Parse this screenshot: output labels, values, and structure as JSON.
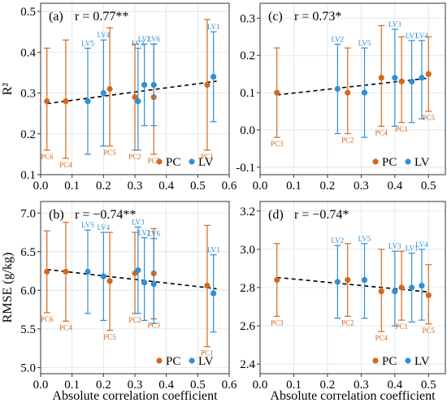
{
  "figure": {
    "x_axis_label": "Absolute correlation coefficient",
    "colors": {
      "PC": "#d2691e",
      "LV": "#2e8fd6",
      "trend": "#000000",
      "grid": "#e0e0e0",
      "frame": "#333333"
    },
    "legend_labels": [
      "PC",
      "LV"
    ]
  },
  "chart_data": [
    {
      "type": "scatter",
      "panel": "(a)",
      "annotation": "r = 0.77**",
      "ylabel": "R²",
      "xlim": [
        0.0,
        0.6
      ],
      "ylim": [
        0.1,
        0.52
      ],
      "xticks": [
        0.0,
        0.1,
        0.2,
        0.3,
        0.4,
        0.5,
        0.6
      ],
      "yticks": [
        0.1,
        0.2,
        0.3,
        0.4,
        0.5
      ],
      "ytick_labels": [
        "0.1",
        "0.2",
        "0.3",
        "0.4",
        "0.5"
      ],
      "xtick_labels": [
        "0.0",
        "0.1",
        "0.2",
        "0.3",
        "0.4",
        "0.5",
        "0.6"
      ],
      "legend": "bottom-right",
      "trend_line": {
        "x": [
          0.02,
          0.56
        ],
        "y": [
          0.274,
          0.329
        ]
      },
      "series": [
        {
          "name": "PC",
          "points": [
            {
              "label": "PC6",
              "x": 0.02,
              "y": 0.28,
              "lo": 0.16,
              "hi": 0.41
            },
            {
              "label": "PC4",
              "x": 0.08,
              "y": 0.28,
              "lo": 0.14,
              "hi": 0.43
            },
            {
              "label": "PC5",
              "x": 0.22,
              "y": 0.31,
              "lo": 0.17,
              "hi": 0.46
            },
            {
              "label": "PC2",
              "x": 0.3,
              "y": 0.29,
              "lo": 0.16,
              "hi": 0.42
            },
            {
              "label": "PC3",
              "x": 0.36,
              "y": 0.29,
              "lo": 0.15,
              "hi": 0.42
            },
            {
              "label": "PC1",
              "x": 0.53,
              "y": 0.32,
              "lo": 0.16,
              "hi": 0.48
            }
          ]
        },
        {
          "name": "LV",
          "points": [
            {
              "label": "LV5",
              "x": 0.15,
              "y": 0.28,
              "lo": 0.15,
              "hi": 0.41
            },
            {
              "label": "LV4",
              "x": 0.2,
              "y": 0.3,
              "lo": 0.17,
              "hi": 0.43
            },
            {
              "label": "LV3",
              "x": 0.31,
              "y": 0.28,
              "lo": 0.16,
              "hi": 0.41
            },
            {
              "label": "LV2",
              "x": 0.33,
              "y": 0.32,
              "lo": 0.22,
              "hi": 0.42
            },
            {
              "label": "LV6",
              "x": 0.36,
              "y": 0.32,
              "lo": 0.22,
              "hi": 0.42
            },
            {
              "label": "LV1",
              "x": 0.55,
              "y": 0.34,
              "lo": 0.23,
              "hi": 0.45
            }
          ]
        }
      ]
    },
    {
      "type": "scatter",
      "panel": "(c)",
      "annotation": "r = 0.73*",
      "ylabel": "",
      "xlim": [
        0.0,
        0.55
      ],
      "ylim": [
        -0.12,
        0.34
      ],
      "xticks": [
        0.0,
        0.1,
        0.2,
        0.3,
        0.4,
        0.5
      ],
      "yticks": [
        -0.1,
        0.0,
        0.1,
        0.2,
        0.3
      ],
      "ytick_labels": [
        "-0.1",
        "0.0",
        "0.1",
        "0.2",
        "0.3"
      ],
      "xtick_labels": [
        "0.0",
        "0.1",
        "0.2",
        "0.3",
        "0.4",
        "0.5"
      ],
      "legend": "bottom-right",
      "trend_line": {
        "x": [
          0.05,
          0.5
        ],
        "y": [
          0.094,
          0.139
        ]
      },
      "series": [
        {
          "name": "PC",
          "points": [
            {
              "label": "PC3",
              "x": 0.05,
              "y": 0.1,
              "lo": -0.02,
              "hi": 0.22
            },
            {
              "label": "PC2",
              "x": 0.26,
              "y": 0.1,
              "lo": -0.01,
              "hi": 0.22
            },
            {
              "label": "PC4",
              "x": 0.36,
              "y": 0.14,
              "lo": 0.01,
              "hi": 0.28
            },
            {
              "label": "PC1",
              "x": 0.42,
              "y": 0.13,
              "lo": 0.02,
              "hi": 0.25
            },
            {
              "label": "PC5",
              "x": 0.5,
              "y": 0.15,
              "lo": 0.05,
              "hi": 0.25
            }
          ]
        },
        {
          "name": "LV",
          "points": [
            {
              "label": "LV2",
              "x": 0.23,
              "y": 0.11,
              "lo": -0.01,
              "hi": 0.23
            },
            {
              "label": "LV5",
              "x": 0.31,
              "y": 0.1,
              "lo": -0.02,
              "hi": 0.22
            },
            {
              "label": "LV3",
              "x": 0.4,
              "y": 0.14,
              "lo": 0.01,
              "hi": 0.27
            },
            {
              "label": "LV1",
              "x": 0.45,
              "y": 0.13,
              "lo": 0.02,
              "hi": 0.24
            },
            {
              "label": "LV4",
              "x": 0.48,
              "y": 0.14,
              "lo": 0.03,
              "hi": 0.24
            }
          ]
        }
      ]
    },
    {
      "type": "scatter",
      "panel": "(b)",
      "annotation": "r = −0.74**",
      "ylabel": "RMSE (g/kg)",
      "xlim": [
        0.0,
        0.6
      ],
      "ylim": [
        4.92,
        7.15
      ],
      "xticks": [
        0.0,
        0.1,
        0.2,
        0.3,
        0.4,
        0.5,
        0.6
      ],
      "yticks": [
        5.0,
        5.5,
        6.0,
        6.5,
        7.0
      ],
      "ytick_labels": [
        "5.0",
        "5.5",
        "6.0",
        "6.5",
        "7.0"
      ],
      "xtick_labels": [
        "0.0",
        "0.1",
        "0.2",
        "0.3",
        "0.4",
        "0.5",
        "0.6"
      ],
      "legend": "bottom-right",
      "trend_line": {
        "x": [
          0.02,
          0.56
        ],
        "y": [
          6.27,
          6.02
        ]
      },
      "series": [
        {
          "name": "PC",
          "points": [
            {
              "label": "PC6",
              "x": 0.02,
              "y": 6.24,
              "lo": 5.71,
              "hi": 6.77
            },
            {
              "label": "PC4",
              "x": 0.08,
              "y": 6.24,
              "lo": 5.6,
              "hi": 6.88
            },
            {
              "label": "PC5",
              "x": 0.22,
              "y": 6.12,
              "lo": 5.48,
              "hi": 6.75
            },
            {
              "label": "PC2",
              "x": 0.3,
              "y": 6.22,
              "lo": 5.7,
              "hi": 6.75
            },
            {
              "label": "PC3",
              "x": 0.36,
              "y": 6.22,
              "lo": 5.63,
              "hi": 6.8
            },
            {
              "label": "PC1",
              "x": 0.53,
              "y": 6.06,
              "lo": 5.27,
              "hi": 6.84
            }
          ]
        },
        {
          "name": "LV",
          "points": [
            {
              "label": "LV5",
              "x": 0.15,
              "y": 6.24,
              "lo": 5.7,
              "hi": 6.78
            },
            {
              "label": "LV4",
              "x": 0.2,
              "y": 6.18,
              "lo": 5.61,
              "hi": 6.75
            },
            {
              "label": "LV3",
              "x": 0.31,
              "y": 6.26,
              "lo": 5.7,
              "hi": 6.82
            },
            {
              "label": "LV2",
              "x": 0.33,
              "y": 6.1,
              "lo": 5.61,
              "hi": 6.68
            },
            {
              "label": "LV6",
              "x": 0.36,
              "y": 6.08,
              "lo": 5.57,
              "hi": 6.67
            },
            {
              "label": "LV1",
              "x": 0.55,
              "y": 5.96,
              "lo": 5.46,
              "hi": 6.46
            }
          ]
        }
      ]
    },
    {
      "type": "scatter",
      "panel": "(d)",
      "annotation": "r = −0.74*",
      "ylabel": "",
      "xlim": [
        0.0,
        0.55
      ],
      "ylim": [
        2.35,
        3.25
      ],
      "xticks": [
        0.0,
        0.1,
        0.2,
        0.3,
        0.4,
        0.5
      ],
      "yticks": [
        2.4,
        2.6,
        2.8,
        3.0,
        3.2
      ],
      "ytick_labels": [
        "2.4",
        "2.6",
        "2.8",
        "3.0",
        "3.2"
      ],
      "xtick_labels": [
        "0.0",
        "0.1",
        "0.2",
        "0.3",
        "0.4",
        "0.5"
      ],
      "legend": "bottom-right",
      "trend_line": {
        "x": [
          0.05,
          0.5
        ],
        "y": [
          2.853,
          2.777
        ]
      },
      "series": [
        {
          "name": "PC",
          "points": [
            {
              "label": "PC3",
              "x": 0.05,
              "y": 2.84,
              "lo": 2.65,
              "hi": 3.03
            },
            {
              "label": "PC2",
              "x": 0.26,
              "y": 2.84,
              "lo": 2.65,
              "hi": 3.03
            },
            {
              "label": "PC4",
              "x": 0.36,
              "y": 2.78,
              "lo": 2.57,
              "hi": 3.0
            },
            {
              "label": "PC1",
              "x": 0.42,
              "y": 2.8,
              "lo": 2.63,
              "hi": 2.99
            },
            {
              "label": "PC5",
              "x": 0.5,
              "y": 2.76,
              "lo": 2.61,
              "hi": 2.92
            }
          ]
        },
        {
          "name": "LV",
          "points": [
            {
              "label": "LV2",
              "x": 0.23,
              "y": 2.83,
              "lo": 2.64,
              "hi": 3.02
            },
            {
              "label": "LV5",
              "x": 0.31,
              "y": 2.84,
              "lo": 2.64,
              "hi": 3.03
            },
            {
              "label": "LV3",
              "x": 0.4,
              "y": 2.78,
              "lo": 2.6,
              "hi": 2.99
            },
            {
              "label": "LV1",
              "x": 0.45,
              "y": 2.8,
              "lo": 2.62,
              "hi": 2.98
            },
            {
              "label": "LV4",
              "x": 0.48,
              "y": 2.81,
              "lo": 2.63,
              "hi": 3.0
            }
          ]
        }
      ]
    }
  ]
}
